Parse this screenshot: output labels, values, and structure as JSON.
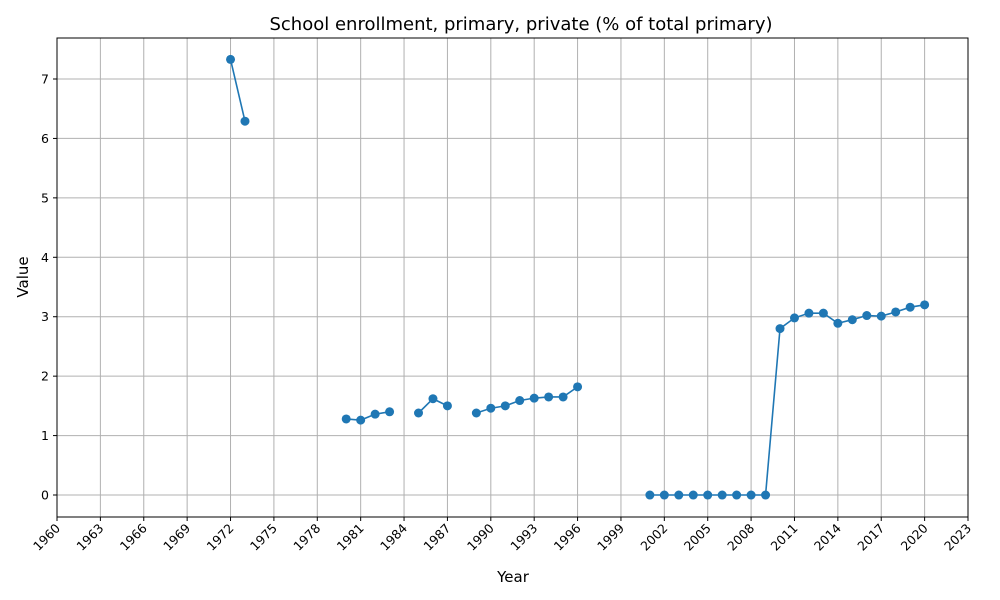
{
  "chart_data": {
    "type": "line",
    "title": "School enrollment, primary, private (% of total primary)",
    "xlabel": "Year",
    "ylabel": "Value",
    "xlim": [
      1960,
      2023
    ],
    "ylim": [
      -0.37,
      7.69
    ],
    "xticks": [
      1960,
      1963,
      1966,
      1969,
      1972,
      1975,
      1978,
      1981,
      1984,
      1987,
      1990,
      1993,
      1996,
      1999,
      2002,
      2005,
      2008,
      2011,
      2014,
      2017,
      2020,
      2023
    ],
    "yticks": [
      0,
      1,
      2,
      3,
      4,
      5,
      6,
      7
    ],
    "grid": true,
    "color": "#1f77b4",
    "series": [
      {
        "x": [
          1972,
          1973,
          1974,
          1975,
          1976,
          1977,
          1978,
          1979,
          1980,
          1981,
          1982,
          1983,
          1984,
          1985,
          1986,
          1987,
          1988,
          1989,
          1990,
          1991,
          1992,
          1993,
          1994,
          1995,
          1996,
          1997,
          1998,
          1999,
          2000,
          2001,
          2002,
          2003,
          2004,
          2005,
          2006,
          2007,
          2008,
          2009,
          2010,
          2011,
          2012,
          2013,
          2014,
          2015,
          2016,
          2017,
          2018,
          2019,
          2020
        ],
        "values": [
          7.33,
          6.29,
          null,
          null,
          null,
          null,
          null,
          null,
          1.28,
          1.26,
          1.36,
          1.4,
          null,
          1.38,
          1.62,
          1.5,
          null,
          1.38,
          1.46,
          1.5,
          1.59,
          1.63,
          1.65,
          1.65,
          1.82,
          null,
          null,
          null,
          null,
          0.0,
          0.0,
          0.0,
          0.0,
          0.0,
          0.0,
          0.0,
          0.0,
          0.0,
          2.8,
          2.98,
          3.06,
          3.06,
          2.89,
          2.95,
          3.02,
          3.01,
          3.08,
          3.16,
          3.2
        ]
      }
    ]
  }
}
